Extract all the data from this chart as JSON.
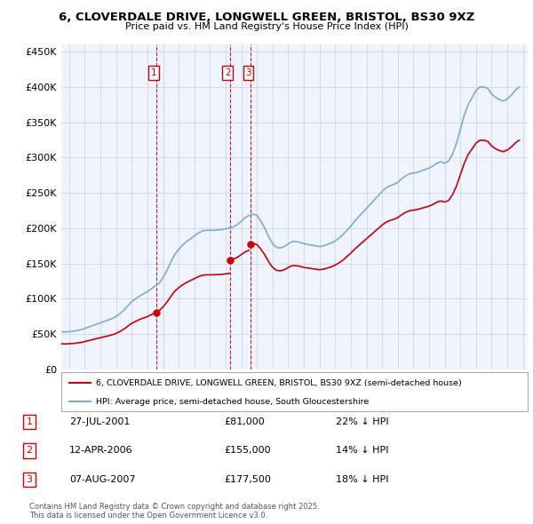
{
  "title": "6, CLOVERDALE DRIVE, LONGWELL GREEN, BRISTOL, BS30 9XZ",
  "subtitle": "Price paid vs. HM Land Registry's House Price Index (HPI)",
  "background_color": "#ffffff",
  "plot_bg_color": "#f0f4ff",
  "grid_color": "#c8d8e8",
  "ylim": [
    0,
    460000
  ],
  "yticks": [
    0,
    50000,
    100000,
    150000,
    200000,
    250000,
    300000,
    350000,
    400000,
    450000
  ],
  "xlim_start": 1995.5,
  "xlim_end": 2025.3,
  "legend_label_red": "6, CLOVERDALE DRIVE, LONGWELL GREEN, BRISTOL, BS30 9XZ (semi-detached house)",
  "legend_label_blue": "HPI: Average price, semi-detached house, South Gloucestershire",
  "transactions": [
    {
      "label": "1",
      "date": "27-JUL-2001",
      "price": 81000,
      "hpi_note": "22% ↓ HPI",
      "x": 2001.57
    },
    {
      "label": "2",
      "date": "12-APR-2006",
      "price": 155000,
      "hpi_note": "14% ↓ HPI",
      "x": 2006.28
    },
    {
      "label": "3",
      "date": "07-AUG-2007",
      "price": 177500,
      "hpi_note": "18% ↓ HPI",
      "x": 2007.6
    }
  ],
  "footer": "Contains HM Land Registry data © Crown copyright and database right 2025.\nThis data is licensed under the Open Government Licence v3.0.",
  "hpi_data_x": [
    1995.5,
    1995.75,
    1996.0,
    1996.25,
    1996.5,
    1996.75,
    1997.0,
    1997.25,
    1997.5,
    1997.75,
    1998.0,
    1998.25,
    1998.5,
    1998.75,
    1999.0,
    1999.25,
    1999.5,
    1999.75,
    2000.0,
    2000.25,
    2000.5,
    2000.75,
    2001.0,
    2001.25,
    2001.5,
    2001.75,
    2002.0,
    2002.25,
    2002.5,
    2002.75,
    2003.0,
    2003.25,
    2003.5,
    2003.75,
    2004.0,
    2004.25,
    2004.5,
    2004.75,
    2005.0,
    2005.25,
    2005.5,
    2005.75,
    2006.0,
    2006.25,
    2006.5,
    2006.75,
    2007.0,
    2007.25,
    2007.5,
    2007.75,
    2008.0,
    2008.25,
    2008.5,
    2008.75,
    2009.0,
    2009.25,
    2009.5,
    2009.75,
    2010.0,
    2010.25,
    2010.5,
    2010.75,
    2011.0,
    2011.25,
    2011.5,
    2011.75,
    2012.0,
    2012.25,
    2012.5,
    2012.75,
    2013.0,
    2013.25,
    2013.5,
    2013.75,
    2014.0,
    2014.25,
    2014.5,
    2014.75,
    2015.0,
    2015.25,
    2015.5,
    2015.75,
    2016.0,
    2016.25,
    2016.5,
    2016.75,
    2017.0,
    2017.25,
    2017.5,
    2017.75,
    2018.0,
    2018.25,
    2018.5,
    2018.75,
    2019.0,
    2019.25,
    2019.5,
    2019.75,
    2020.0,
    2020.25,
    2020.5,
    2020.75,
    2021.0,
    2021.25,
    2021.5,
    2021.75,
    2022.0,
    2022.25,
    2022.5,
    2022.75,
    2023.0,
    2023.25,
    2023.5,
    2023.75,
    2024.0,
    2024.25,
    2024.5,
    2024.75
  ],
  "hpi_data_y": [
    53500,
    53000,
    53500,
    54000,
    55000,
    56000,
    58000,
    60000,
    62000,
    64000,
    66000,
    68000,
    70000,
    72000,
    75000,
    79000,
    84000,
    90000,
    96000,
    100000,
    104000,
    107000,
    110000,
    114000,
    118000,
    122000,
    130000,
    140000,
    152000,
    163000,
    170000,
    176000,
    181000,
    185000,
    189000,
    193000,
    196000,
    197000,
    197000,
    197000,
    197500,
    198000,
    199000,
    200000,
    202000,
    205000,
    210000,
    215000,
    218000,
    220000,
    218000,
    210000,
    200000,
    188000,
    178000,
    173000,
    172000,
    174000,
    178000,
    181000,
    181000,
    180000,
    178000,
    177000,
    176000,
    175000,
    174000,
    175000,
    177000,
    179000,
    182000,
    186000,
    191000,
    197000,
    203000,
    210000,
    216000,
    222000,
    228000,
    234000,
    240000,
    246000,
    252000,
    257000,
    260000,
    262000,
    265000,
    270000,
    274000,
    277000,
    278000,
    279000,
    281000,
    283000,
    285000,
    288000,
    292000,
    294000,
    292000,
    295000,
    305000,
    320000,
    340000,
    360000,
    375000,
    385000,
    395000,
    400000,
    400000,
    398000,
    390000,
    385000,
    382000,
    380000,
    383000,
    388000,
    395000,
    400000
  ],
  "red_color": "#cc0000",
  "blue_color": "#7aabdc",
  "trans1_x": 2001.57,
  "trans1_y": 81000,
  "trans2_x": 2006.28,
  "trans2_y": 155000,
  "trans3_x": 2007.6,
  "trans3_y": 177500
}
